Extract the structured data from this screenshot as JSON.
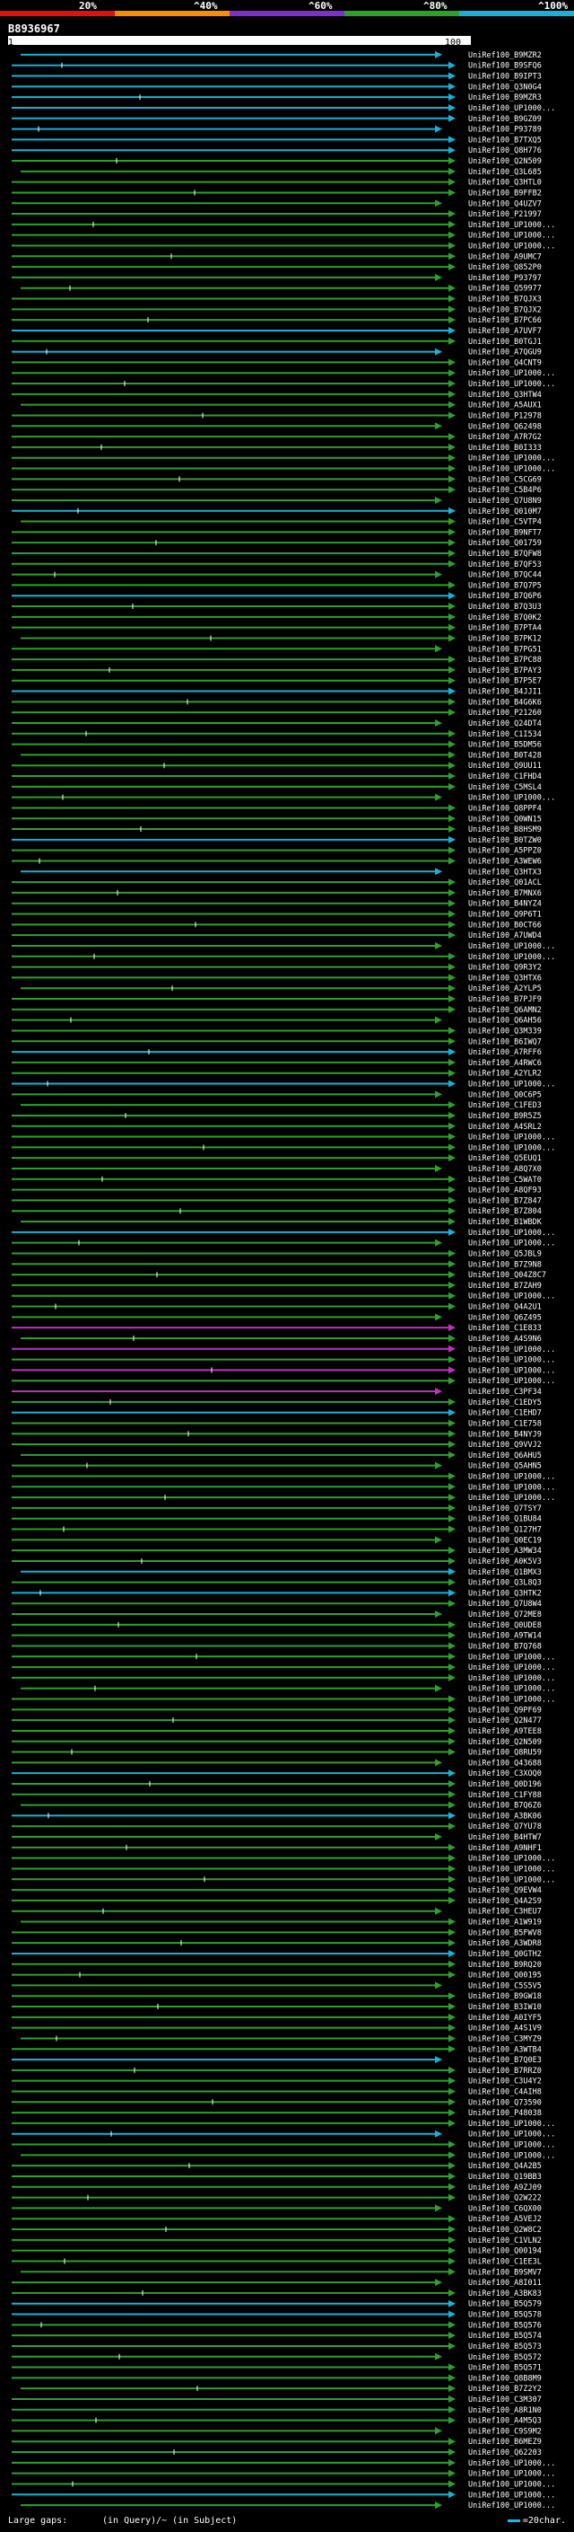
{
  "legend": {
    "labels": [
      "20%",
      "^40%",
      "^60%",
      "^80%",
      "^100%"
    ],
    "colors": [
      "#e01010",
      "#ff8c00",
      "#7e2fd0",
      "#2ea02e",
      "#17b2d6"
    ]
  },
  "query": {
    "id": "B8936967",
    "ruler_start": "1",
    "ruler_end": "100"
  },
  "hits": [
    "UniRef100_B9MZR2",
    "UniRef100_B9SFQ6",
    "UniRef100_B9IPT3",
    "UniRef100_Q3N0G4",
    "UniRef100_B9MZR3",
    "UniRef100_UP1000...",
    "UniRef100_B9GZ09",
    "UniRef100_P93789",
    "UniRef100_B7TXQ5",
    "UniRef100_Q8H776",
    "UniRef100_Q2N509",
    "UniRef100_Q3L685",
    "UniRef100_Q3HTL0",
    "UniRef100_B9FFB2",
    "UniRef100_Q4UZV7",
    "UniRef100_P21997",
    "UniRef100_UP1000...",
    "UniRef100_UP1000...",
    "UniRef100_UP1000...",
    "UniRef100_A9UMC7",
    "UniRef100_Q852P0",
    "UniRef100_P93797",
    "UniRef100_Q59977",
    "UniRef100_B7QJX3",
    "UniRef100_B7QJX2",
    "UniRef100_B7PC66",
    "UniRef100_A7UVF7",
    "UniRef100_B0TGJ1",
    "UniRef100_A7QGU9",
    "UniRef100_Q4CNT9",
    "UniRef100_UP1000...",
    "UniRef100_UP1000...",
    "UniRef100_Q3HTW4",
    "UniRef100_A5AUX1",
    "UniRef100_P12978",
    "UniRef100_Q62498",
    "UniRef100_A7R7G2",
    "UniRef100_B0I333",
    "UniRef100_UP1000...",
    "UniRef100_UP1000...",
    "UniRef100_C5CG69",
    "UniRef100_C5B4P6",
    "UniRef100_Q7U8N9",
    "UniRef100_Q010M7",
    "UniRef100_C5VTP4",
    "UniRef100_B9NFT7",
    "UniRef100_Q01759",
    "UniRef100_B7QFW8",
    "UniRef100_B7QF53",
    "UniRef100_B7QC44",
    "UniRef100_B7Q7P5",
    "UniRef100_B7Q6P6",
    "UniRef100_B7Q3U3",
    "UniRef100_B7Q0K2",
    "UniRef100_B7PTA4",
    "UniRef100_B7PK12",
    "UniRef100_B7PG51",
    "UniRef100_B7PC88",
    "UniRef100_B7PAY3",
    "UniRef100_B7P5E7",
    "UniRef100_B4JJI1",
    "UniRef100_B4G6K6",
    "UniRef100_P21260",
    "UniRef100_Q24DT4",
    "UniRef100_C1I534",
    "UniRef100_B5DM56",
    "UniRef100_B0T428",
    "UniRef100_Q9UU11",
    "UniRef100_C1FHD4",
    "UniRef100_C5MSL4",
    "UniRef100_UP1000...",
    "UniRef100_Q8PPF4",
    "UniRef100_Q0WN15",
    "UniRef100_B8HSM9",
    "UniRef100_B0TZW0",
    "UniRef100_A5PPZ0",
    "UniRef100_A3WEW6",
    "UniRef100_Q3HTX3",
    "UniRef100_Q01ACL",
    "UniRef100_B7MNX6",
    "UniRef100_B4NYZ4",
    "UniRef100_Q9P6T1",
    "UniRef100_B0CT66",
    "UniRef100_A7UWD4",
    "UniRef100_UP1000...",
    "UniRef100_UP1000...",
    "UniRef100_Q9R3Y2",
    "UniRef100_Q3HTX6",
    "UniRef100_A2YLP5",
    "UniRef100_B7PJF9",
    "UniRef100_Q6AMN2",
    "UniRef100_Q6AH56",
    "UniRef100_Q3M339",
    "UniRef100_B6IWQ7",
    "UniRef100_A7RFF6",
    "UniRef100_A4RWC6",
    "UniRef100_A2YLR2",
    "UniRef100_UP1000...",
    "UniRef100_Q0C6P5",
    "UniRef100_C1FED3",
    "UniRef100_B9R5Z5",
    "UniRef100_A4SRL2",
    "UniRef100_UP1000...",
    "UniRef100_UP1000...",
    "UniRef100_Q5EUQ1",
    "UniRef100_A8Q7X0",
    "UniRef100_C5WAT0",
    "UniRef100_A8QF93",
    "UniRef100_B7Z847",
    "UniRef100_B7Z804",
    "UniRef100_B1WBDK",
    "UniRef100_UP1000...",
    "UniRef100_UP1000...",
    "UniRef100_Q5JBL9",
    "UniRef100_B7Z9N8",
    "UniRef100_Q04Z8C7",
    "UniRef100_B7ZAH9",
    "UniRef100_UP1000...",
    "UniRef100_Q4A2U1",
    "UniRef100_Q6Z495",
    "UniRef100_C1E833",
    "UniRef100_A4S9N6",
    "UniRef100_UP1000...",
    "UniRef100_UP1000...",
    "UniRef100_UP1000...",
    "UniRef100_UP1000...",
    "UniRef100_C3PF34",
    "UniRef100_C1EDY5",
    "UniRef100_C1EHD7",
    "UniRef100_C1E758",
    "UniRef100_B4NYJ9",
    "UniRef100_Q9VVJ2",
    "UniRef100_Q6AHU5",
    "UniRef100_Q5AHN5",
    "UniRef100_UP1000...",
    "UniRef100_UP1000...",
    "UniRef100_UP1000...",
    "UniRef100_Q7TSY7",
    "UniRef100_Q1BU84",
    "UniRef100_Q127H7",
    "UniRef100_Q0EC19",
    "UniRef100_A3MW34",
    "UniRef100_A0K5V3",
    "UniRef100_Q1BMX3",
    "UniRef100_Q3L8Q3",
    "UniRef100_Q3HTK2",
    "UniRef100_Q7U8W4",
    "UniRef100_Q72ME8",
    "UniRef100_Q0UDE8",
    "UniRef100_A9TW14",
    "UniRef100_B7Q768",
    "UniRef100_UP1000...",
    "UniRef100_UP1000...",
    "UniRef100_UP1000...",
    "UniRef100_UP1000...",
    "UniRef100_UP1000...",
    "UniRef100_Q9PF69",
    "UniRef100_Q2N477",
    "UniRef100_A9TEE8",
    "UniRef100_Q2N509",
    "UniRef100_Q8RU59",
    "UniRef100_Q43688",
    "UniRef100_C3XOQ0",
    "UniRef100_Q0D196",
    "UniRef100_C1FY88",
    "UniRef100_B7Q6Z6",
    "UniRef100_A3BK06",
    "UniRef100_Q7YU78",
    "UniRef100_B4HTW7",
    "UniRef100_A9NHF1",
    "UniRef100_UP1000...",
    "UniRef100_UP1000...",
    "UniRef100_UP1000...",
    "UniRef100_Q9EVW4",
    "UniRef100_Q4A2S9",
    "UniRef100_C3HEU7",
    "UniRef100_A1W919",
    "UniRef100_B5FWV8",
    "UniRef100_A3WDR8",
    "UniRef100_Q0GTH2",
    "UniRef100_B9RQ20",
    "UniRef100_Q00195",
    "UniRef100_C5S5V5",
    "UniRef100_B9GW18",
    "UniRef100_B3IW10",
    "UniRef100_A0IYF5",
    "UniRef100_A4S1V9",
    "UniRef100_C3MYZ9",
    "UniRef100_A3WTB4",
    "UniRef100_B7Q0E3",
    "UniRef100_B7RRZ0",
    "UniRef100_C3U4Y2",
    "UniRef100_C4AIH8",
    "UniRef100_Q73590",
    "UniRef100_P48038",
    "UniRef100_UP1000...",
    "UniRef100_UP1000...",
    "UniRef100_UP1000...",
    "UniRef100_UP1000...",
    "UniRef100_Q4A2B5",
    "UniRef100_Q19BB3",
    "UniRef100_A9ZJ09",
    "UniRef100_Q2W222",
    "UniRef100_C6QX00",
    "UniRef100_A5VEJ2",
    "UniRef100_Q2W8C2",
    "UniRef100_C1VLN2",
    "UniRef100_Q00194",
    "UniRef100_C1EE3L",
    "UniRef100_B9SMV7",
    "UniRef100_A8I011",
    "UniRef100_A3BK83",
    "UniRef100_B5Q579",
    "UniRef100_B5Q578",
    "UniRef100_B5Q576",
    "UniRef100_B5Q574",
    "UniRef100_B5Q573",
    "UniRef100_B5Q572",
    "UniRef100_B5Q571",
    "UniRef100_Q8B8M9",
    "UniRef100_B7Z2Y2",
    "UniRef100_C3M307",
    "UniRef100_A8R1N0",
    "UniRef100_A4M5Q3",
    "UniRef100_C9S9M2",
    "UniRef100_B6MEZ9",
    "UniRef100_Q62203",
    "UniRef100_UP1000...",
    "UniRef100_UP1000...",
    "UniRef100_UP1000...",
    "UniRef100_UP1000...",
    "UniRef100_UP1000..."
  ],
  "footer": {
    "large_gaps_label": "Large gaps:",
    "in_query_label": "(in Query)",
    "in_subject_label": "/~ (in Subject)",
    "scale_label": "=20char."
  }
}
